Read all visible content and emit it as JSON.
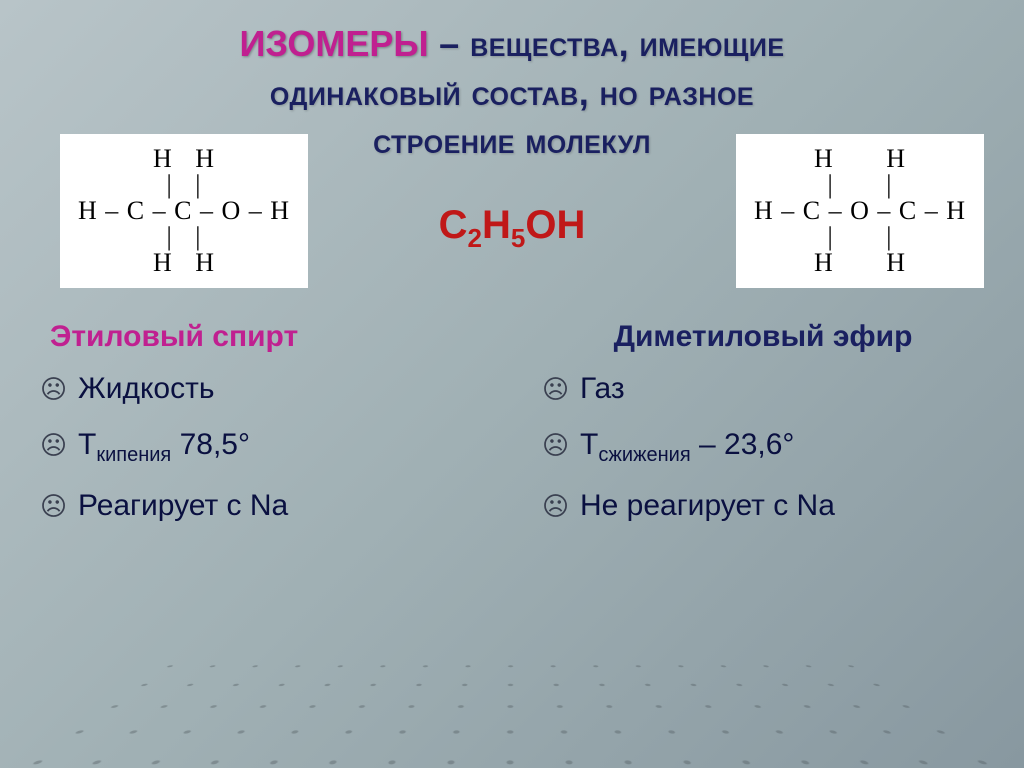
{
  "title": {
    "isomers": "ИЗОМЕРЫ",
    "dash": " – ",
    "line1_rest": "вещества, имеющие",
    "line2": "одинаковый состав, но разное",
    "line3": "строение молекул"
  },
  "formula_html": "C<sub>2</sub>H<sub>5</sub>OH",
  "left": {
    "name": "Этиловый спирт",
    "structure_color": "#000000",
    "structure_bg": "#ffffff",
    "structure_rows": [
      "    H   H    ",
      "    |   |    ",
      "H – C – C – O – H",
      "    |   |    ",
      "    H   H    "
    ],
    "props": [
      {
        "text": "Жидкость"
      },
      {
        "html": "Т<sub>кипения</sub>  78,5°"
      },
      {
        "text": "Реагирует с Na"
      }
    ],
    "name_color": "#c02090"
  },
  "right": {
    "name": "Диметиловый эфир",
    "structure_color": "#000000",
    "structure_bg": "#ffffff",
    "structure_rows": [
      "    H       H    ",
      "    |       |    ",
      "H – C – O – C – H",
      "    |       |    ",
      "    H       H    "
    ],
    "props": [
      {
        "text": " Газ"
      },
      {
        "html": "Т<sub>сжижения</sub> – 23,6°"
      },
      {
        "text": "Не реагирует с Na"
      }
    ],
    "name_color": "#1a2060"
  },
  "colors": {
    "title_accent": "#c02090",
    "title_main": "#1a2060",
    "formula": "#c01818",
    "body_text": "#0a1040",
    "background_top": "#b8c4c8",
    "background_bottom": "#8898a0"
  },
  "fonts": {
    "title_size_pt": 27,
    "formula_size_pt": 30,
    "compound_name_pt": 22,
    "props_pt": 22
  }
}
